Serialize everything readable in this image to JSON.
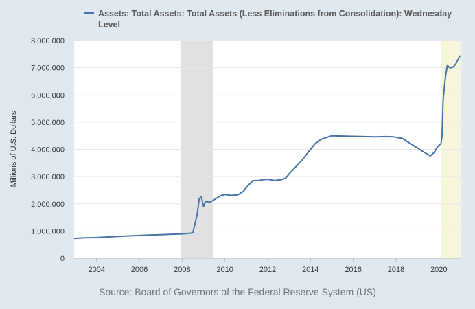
{
  "colors": {
    "background": "#e1e9f0",
    "plot_background": "#ffffff",
    "series": "#4572a7",
    "recession_shade": "#e1e1e1",
    "pandemic_shade": "#f6f6dc",
    "grid": "#e6e6e6"
  },
  "chart_data": {
    "type": "line",
    "title": "",
    "xlabel": "",
    "ylabel": "Millions of U.S. Dollars",
    "xlim": [
      2002.95,
      2021.05
    ],
    "ylim": [
      0,
      8000000
    ],
    "grid": true,
    "legend_position": "top",
    "x_ticks": [
      2004,
      2006,
      2008,
      2010,
      2012,
      2014,
      2016,
      2018,
      2020
    ],
    "y_ticks": [
      0,
      1000000,
      2000000,
      3000000,
      4000000,
      5000000,
      6000000,
      7000000,
      8000000
    ],
    "x_tick_labels": [
      "2004",
      "2006",
      "2008",
      "2010",
      "2012",
      "2014",
      "2016",
      "2018",
      "2020"
    ],
    "y_tick_labels": [
      "0",
      "1,000,000",
      "2,000,000",
      "3,000,000",
      "4,000,000",
      "5,000,000",
      "6,000,000",
      "7,000,000",
      "8,000,000"
    ],
    "shaded_regions": [
      {
        "from": 2007.95,
        "to": 2009.45,
        "kind": "recession"
      },
      {
        "from": 2020.1,
        "to": 2021.05,
        "kind": "pandemic"
      }
    ],
    "series": [
      {
        "name": "Assets: Total Assets: Total Assets (Less Eliminations from Consolidation): Wednesday Level",
        "x": [
          2002.95,
          2003.5,
          2004.0,
          2004.5,
          2005.0,
          2005.5,
          2006.0,
          2006.5,
          2007.0,
          2007.5,
          2007.95,
          2008.2,
          2008.5,
          2008.7,
          2008.8,
          2008.9,
          2009.0,
          2009.1,
          2009.25,
          2009.4,
          2009.5,
          2009.6,
          2009.8,
          2010.0,
          2010.3,
          2010.6,
          2010.85,
          2011.0,
          2011.3,
          2011.6,
          2011.9,
          2012.1,
          2012.3,
          2012.6,
          2012.85,
          2013.0,
          2013.3,
          2013.6,
          2013.9,
          2014.2,
          2014.5,
          2014.8,
          2015.0,
          2015.5,
          2016.0,
          2016.5,
          2017.0,
          2017.5,
          2017.9,
          2018.3,
          2018.6,
          2019.0,
          2019.3,
          2019.6,
          2019.8,
          2019.9,
          2020.0,
          2020.1,
          2020.15,
          2020.2,
          2020.3,
          2020.4,
          2020.5,
          2020.6,
          2020.7,
          2020.8,
          2020.9,
          2021.0
        ],
        "y": [
          730000,
          750000,
          760000,
          780000,
          800000,
          820000,
          835000,
          850000,
          865000,
          880000,
          890000,
          905000,
          930000,
          1600000,
          2200000,
          2250000,
          1900000,
          2100000,
          2050000,
          2100000,
          2150000,
          2200000,
          2300000,
          2340000,
          2310000,
          2330000,
          2450000,
          2600000,
          2850000,
          2860000,
          2900000,
          2890000,
          2860000,
          2880000,
          2950000,
          3100000,
          3350000,
          3600000,
          3900000,
          4200000,
          4370000,
          4450000,
          4500000,
          4490000,
          4480000,
          4470000,
          4460000,
          4470000,
          4460000,
          4400000,
          4250000,
          4050000,
          3900000,
          3760000,
          3900000,
          4050000,
          4150000,
          4200000,
          4500000,
          5800000,
          6600000,
          7100000,
          7000000,
          7000000,
          7050000,
          7150000,
          7300000,
          7450000
        ]
      }
    ]
  },
  "source": "Source: Board of Governors of the Federal Reserve System (US)"
}
